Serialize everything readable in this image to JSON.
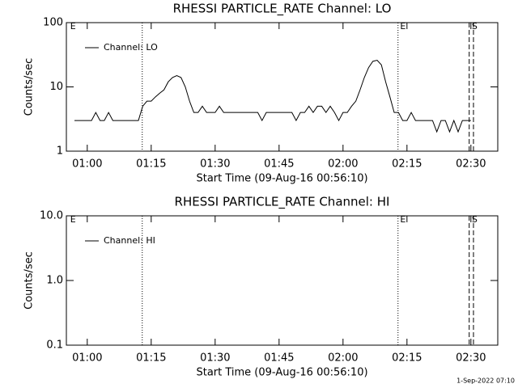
{
  "chart_data": [
    {
      "type": "line",
      "title": "RHESSI PARTICLE_RATE Channel: LO",
      "xlabel": "Start Time (09-Aug-16 00:56:10)",
      "ylabel": "Counts/sec",
      "log_y": true,
      "ylim": [
        1,
        100
      ],
      "yticks": [
        1,
        10,
        100
      ],
      "xlim": [
        55.1,
        156.3
      ],
      "xticks": [
        {
          "value": 60,
          "label": "01:00"
        },
        {
          "value": 75,
          "label": "01:15"
        },
        {
          "value": 90,
          "label": "01:30"
        },
        {
          "value": 105,
          "label": "01:45"
        },
        {
          "value": 120,
          "label": "02:00"
        },
        {
          "value": 135,
          "label": "02:15"
        },
        {
          "value": 150,
          "label": "02:30"
        }
      ],
      "legend": "upper left",
      "lines": [
        {
          "x": 72.9,
          "style": "dotted"
        },
        {
          "x": 132.9,
          "style": "dotted"
        },
        {
          "x": 149.6,
          "style": "dashed"
        },
        {
          "x": 150.6,
          "style": "dashed"
        }
      ],
      "flags": [
        {
          "x": 56.0,
          "text": "E"
        },
        {
          "x": 133.4,
          "text": "E"
        },
        {
          "x": 150.2,
          "text": "S"
        }
      ],
      "series": [
        {
          "name": "Channel: LO",
          "color": "#000000",
          "x": [
            57,
            58,
            59,
            60,
            61,
            62,
            63,
            64,
            65,
            66,
            67,
            68,
            69,
            70,
            71,
            72,
            73,
            74,
            75,
            76,
            77,
            78,
            79,
            80,
            81,
            82,
            83,
            84,
            85,
            86,
            87,
            88,
            89,
            90,
            91,
            92,
            93,
            94,
            95,
            96,
            97,
            98,
            99,
            100,
            101,
            102,
            103,
            104,
            105,
            106,
            107,
            108,
            109,
            110,
            111,
            112,
            113,
            114,
            115,
            116,
            117,
            118,
            119,
            120,
            121,
            122,
            123,
            124,
            125,
            126,
            127,
            128,
            129,
            130,
            131,
            132,
            133,
            134,
            135,
            136,
            137,
            138,
            139,
            140,
            141,
            142,
            143,
            144,
            145,
            146,
            147,
            148,
            149,
            150
          ],
          "values": [
            3,
            3,
            3,
            3,
            3,
            4,
            3,
            3,
            4,
            3,
            3,
            3,
            3,
            3,
            3,
            3,
            5,
            6,
            6,
            7,
            8,
            9,
            12,
            14,
            15,
            14,
            10,
            6,
            4,
            4,
            5,
            4,
            4,
            4,
            5,
            4,
            4,
            4,
            4,
            4,
            4,
            4,
            4,
            4,
            3,
            4,
            4,
            4,
            4,
            4,
            4,
            4,
            3,
            4,
            4,
            5,
            4,
            5,
            5,
            4,
            5,
            4,
            3,
            4,
            4,
            5,
            6,
            9,
            14,
            20,
            25,
            26,
            22,
            12,
            7,
            4,
            4,
            3,
            3,
            4,
            3,
            3,
            3,
            3,
            3,
            2,
            3,
            3,
            2,
            3,
            2,
            3,
            3,
            3
          ]
        }
      ]
    },
    {
      "type": "line",
      "title": "RHESSI PARTICLE_RATE Channel: HI",
      "xlabel": "Start Time (09-Aug-16 00:56:10)",
      "ylabel": "Counts/sec",
      "log_y": true,
      "ylim": [
        0.1,
        10
      ],
      "yticks": [
        0.1,
        {
          "value": 1,
          "label": "1.0"
        },
        {
          "value": 10,
          "label": "10.0"
        }
      ],
      "xlim": [
        55.1,
        156.3
      ],
      "xticks": [
        {
          "value": 60,
          "label": "01:00"
        },
        {
          "value": 75,
          "label": "01:15"
        },
        {
          "value": 90,
          "label": "01:30"
        },
        {
          "value": 105,
          "label": "01:45"
        },
        {
          "value": 120,
          "label": "02:00"
        },
        {
          "value": 135,
          "label": "02:15"
        },
        {
          "value": 150,
          "label": "02:30"
        }
      ],
      "legend": "upper left",
      "lines": [
        {
          "x": 72.9,
          "style": "dotted"
        },
        {
          "x": 132.9,
          "style": "dotted"
        },
        {
          "x": 149.6,
          "style": "dashed"
        },
        {
          "x": 150.6,
          "style": "dashed"
        }
      ],
      "flags": [
        {
          "x": 56.0,
          "text": "E"
        },
        {
          "x": 133.4,
          "text": "E"
        },
        {
          "x": 150.2,
          "text": "S"
        }
      ],
      "series": [
        {
          "name": "Channel: HI",
          "color": "#000000",
          "x": [],
          "values": []
        }
      ]
    }
  ],
  "footer": "1-Sep-2022 07:10"
}
